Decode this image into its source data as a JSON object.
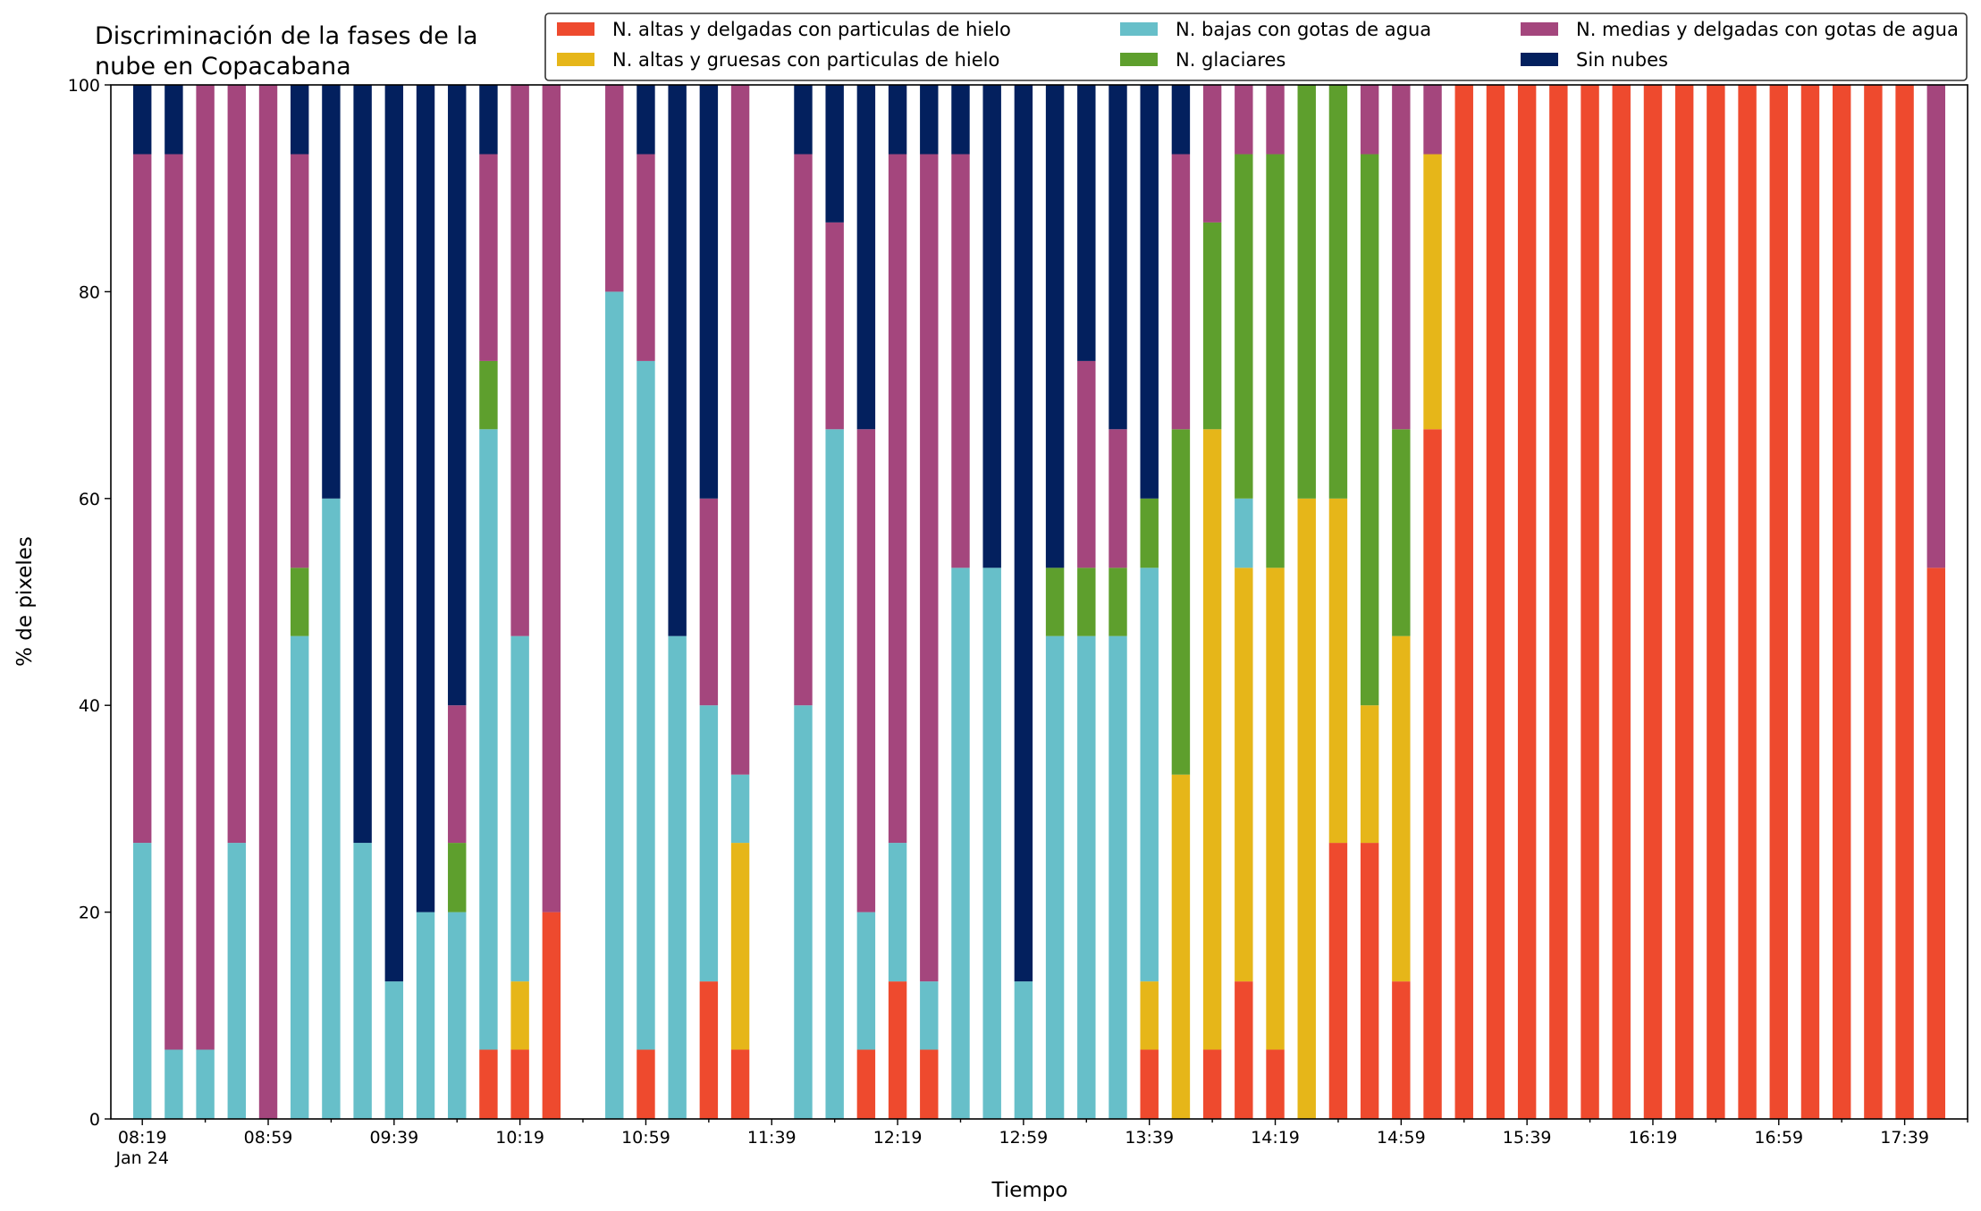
{
  "chart_data": {
    "type": "bar",
    "stacked": true,
    "title": "Discriminación de la fases de la nube en Copacabana",
    "title_lines": [
      "Discriminación de la fases de la",
      "nube en Copacabana"
    ],
    "xlabel": "Tiempo",
    "ylabel": "% de pixeles",
    "ylim": [
      0,
      100
    ],
    "yticks": [
      0,
      20,
      40,
      60,
      80,
      100
    ],
    "xlim_minutes_since_08_19": [
      -10,
      580
    ],
    "interval_minutes": 10,
    "xticks": [
      {
        "minute": 0,
        "label": "08:19",
        "sublabel": "Jan 24"
      },
      {
        "minute": 40,
        "label": "08:59"
      },
      {
        "minute": 80,
        "label": "09:39"
      },
      {
        "minute": 120,
        "label": "10:19"
      },
      {
        "minute": 160,
        "label": "10:59"
      },
      {
        "minute": 200,
        "label": "11:39"
      },
      {
        "minute": 240,
        "label": "12:19"
      },
      {
        "minute": 280,
        "label": "12:59"
      },
      {
        "minute": 320,
        "label": "13:39"
      },
      {
        "minute": 360,
        "label": "14:19"
      },
      {
        "minute": 400,
        "label": "14:59"
      },
      {
        "minute": 440,
        "label": "15:39"
      },
      {
        "minute": 480,
        "label": "16:19"
      },
      {
        "minute": 520,
        "label": "16:59"
      },
      {
        "minute": 560,
        "label": "17:39"
      }
    ],
    "grid": false,
    "legend_position": "top-right",
    "legend_columns": 3,
    "series": [
      {
        "name": "N. altas y delgadas con particulas de hielo",
        "color": "#ee4a2e"
      },
      {
        "name": "N. altas y gruesas con particulas de hielo",
        "color": "#e6b619"
      },
      {
        "name": "N. bajas con gotas de agua",
        "color": "#67bfc9"
      },
      {
        "name": "N. glaciares",
        "color": "#5e9f2d"
      },
      {
        "name": "N. medias y delgadas con gotas de agua",
        "color": "#a4467d"
      },
      {
        "name": "Sin nubes",
        "color": "#03205e"
      }
    ],
    "stack_order": [
      "N. altas y delgadas con particulas de hielo",
      "N. altas y gruesas con particulas de hielo",
      "N. bajas con gotas de agua",
      "N. glaciares",
      "N. medias y delgadas con gotas de agua",
      "Sin nubes"
    ],
    "bars": [
      {
        "x": "08:19",
        "values": [
          0,
          0,
          26.7,
          0,
          66.6,
          6.7
        ]
      },
      {
        "x": "08:29",
        "values": [
          0,
          0,
          6.7,
          0,
          86.6,
          6.7
        ]
      },
      {
        "x": "08:39",
        "values": [
          0,
          0,
          6.7,
          0,
          93.3,
          0
        ]
      },
      {
        "x": "08:49",
        "values": [
          0,
          0,
          26.7,
          0,
          73.3,
          0
        ]
      },
      {
        "x": "08:59",
        "values": [
          0,
          0,
          0,
          0,
          100,
          0
        ]
      },
      {
        "x": "09:09",
        "values": [
          0,
          0,
          46.7,
          6.6,
          40,
          6.7
        ]
      },
      {
        "x": "09:19",
        "values": [
          0,
          0,
          60,
          0,
          0,
          40
        ]
      },
      {
        "x": "09:29",
        "values": [
          0,
          0,
          26.7,
          0,
          0,
          73.3
        ]
      },
      {
        "x": "09:39",
        "values": [
          0,
          0,
          13.3,
          0,
          0,
          86.7
        ]
      },
      {
        "x": "09:49",
        "values": [
          0,
          0,
          20,
          0,
          0,
          80
        ]
      },
      {
        "x": "09:59",
        "values": [
          0,
          0,
          20,
          6.7,
          13.3,
          60
        ]
      },
      {
        "x": "10:09",
        "values": [
          6.7,
          0,
          60,
          6.6,
          20,
          6.7
        ]
      },
      {
        "x": "10:19",
        "values": [
          6.7,
          6.6,
          33.4,
          0,
          53.3,
          0
        ]
      },
      {
        "x": "10:29",
        "values": [
          20,
          0,
          0,
          0,
          80,
          0
        ]
      },
      {
        "x": "10:49",
        "values": [
          0,
          0,
          80,
          0,
          20,
          0
        ]
      },
      {
        "x": "10:59",
        "values": [
          6.7,
          0,
          66.6,
          0,
          20,
          6.7
        ]
      },
      {
        "x": "11:09",
        "values": [
          0,
          0,
          46.7,
          0,
          0,
          53.3
        ]
      },
      {
        "x": "11:19",
        "values": [
          13.3,
          0,
          26.7,
          0,
          20,
          40
        ]
      },
      {
        "x": "11:29",
        "values": [
          6.7,
          20,
          6.6,
          0,
          66.7,
          0
        ]
      },
      {
        "x": "11:49",
        "values": [
          0,
          0,
          40,
          0,
          53.3,
          6.7
        ]
      },
      {
        "x": "11:59",
        "values": [
          0,
          0,
          66.7,
          0,
          20,
          13.3
        ]
      },
      {
        "x": "12:09",
        "values": [
          6.7,
          0,
          13.3,
          0,
          46.7,
          33.3
        ]
      },
      {
        "x": "12:19",
        "values": [
          13.3,
          0,
          13.4,
          0,
          66.6,
          6.7
        ]
      },
      {
        "x": "12:29",
        "values": [
          6.7,
          0,
          6.6,
          0,
          80,
          6.7
        ]
      },
      {
        "x": "12:39",
        "values": [
          0,
          0,
          53.3,
          0,
          40,
          6.7
        ]
      },
      {
        "x": "12:49",
        "values": [
          0,
          0,
          53.3,
          0,
          0,
          46.7
        ]
      },
      {
        "x": "12:59",
        "values": [
          0,
          0,
          13.3,
          0,
          0,
          86.7
        ]
      },
      {
        "x": "13:09",
        "values": [
          0,
          0,
          46.7,
          6.6,
          0,
          46.7
        ]
      },
      {
        "x": "13:19",
        "values": [
          0,
          0,
          46.7,
          6.6,
          20,
          26.7
        ]
      },
      {
        "x": "13:29",
        "values": [
          0,
          0,
          46.7,
          6.6,
          13.4,
          33.3
        ]
      },
      {
        "x": "13:39",
        "values": [
          6.7,
          6.6,
          40,
          6.7,
          0,
          40
        ]
      },
      {
        "x": "13:49",
        "values": [
          0,
          33.3,
          0,
          33.4,
          26.6,
          6.7
        ]
      },
      {
        "x": "13:59",
        "values": [
          6.7,
          60,
          0,
          20,
          13.3,
          0
        ]
      },
      {
        "x": "14:09",
        "values": [
          13.3,
          40,
          6.7,
          33.3,
          6.7,
          0
        ]
      },
      {
        "x": "14:19",
        "values": [
          6.7,
          46.6,
          0,
          40,
          6.7,
          0
        ]
      },
      {
        "x": "14:29",
        "values": [
          0,
          60,
          0,
          40,
          0,
          0
        ]
      },
      {
        "x": "14:39",
        "values": [
          26.7,
          33.3,
          0,
          40,
          0,
          0
        ]
      },
      {
        "x": "14:49",
        "values": [
          26.7,
          13.3,
          0,
          53.3,
          6.7,
          0
        ]
      },
      {
        "x": "14:59",
        "values": [
          13.3,
          33.4,
          0,
          20,
          33.3,
          0
        ]
      },
      {
        "x": "15:09",
        "values": [
          66.7,
          26.6,
          0,
          0,
          6.7,
          0
        ]
      },
      {
        "x": "15:19",
        "values": [
          100,
          0,
          0,
          0,
          0,
          0
        ]
      },
      {
        "x": "15:29",
        "values": [
          100,
          0,
          0,
          0,
          0,
          0
        ]
      },
      {
        "x": "15:39",
        "values": [
          100,
          0,
          0,
          0,
          0,
          0
        ]
      },
      {
        "x": "15:49",
        "values": [
          100,
          0,
          0,
          0,
          0,
          0
        ]
      },
      {
        "x": "15:59",
        "values": [
          100,
          0,
          0,
          0,
          0,
          0
        ]
      },
      {
        "x": "16:09",
        "values": [
          100,
          0,
          0,
          0,
          0,
          0
        ]
      },
      {
        "x": "16:19",
        "values": [
          100,
          0,
          0,
          0,
          0,
          0
        ]
      },
      {
        "x": "16:29",
        "values": [
          100,
          0,
          0,
          0,
          0,
          0
        ]
      },
      {
        "x": "16:39",
        "values": [
          100,
          0,
          0,
          0,
          0,
          0
        ]
      },
      {
        "x": "16:49",
        "values": [
          100,
          0,
          0,
          0,
          0,
          0
        ]
      },
      {
        "x": "16:59",
        "values": [
          100,
          0,
          0,
          0,
          0,
          0
        ]
      },
      {
        "x": "17:09",
        "values": [
          100,
          0,
          0,
          0,
          0,
          0
        ]
      },
      {
        "x": "17:19",
        "values": [
          100,
          0,
          0,
          0,
          0,
          0
        ]
      },
      {
        "x": "17:29",
        "values": [
          100,
          0,
          0,
          0,
          0,
          0
        ]
      },
      {
        "x": "17:39",
        "values": [
          100,
          0,
          0,
          0,
          0,
          0
        ]
      },
      {
        "x": "17:49",
        "values": [
          53.3,
          0,
          0,
          0,
          46.7,
          0
        ]
      }
    ]
  }
}
